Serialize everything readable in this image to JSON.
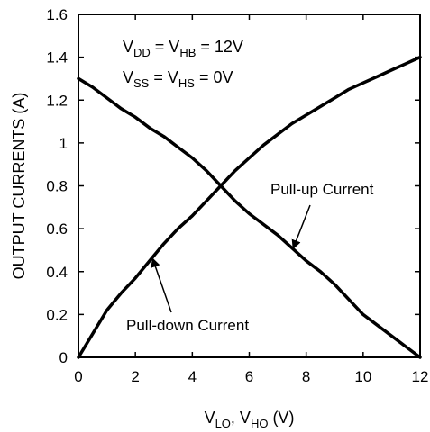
{
  "chart_data": {
    "type": "line",
    "xlabel": {
      "base1": "V",
      "sub1": "LO",
      "sep": ", ",
      "base2": "V",
      "sub2": "HO",
      "unit": " (V)"
    },
    "ylabel": "OUTPUT CURRENTS (A)",
    "xlim": [
      0,
      12
    ],
    "ylim": [
      0,
      1.6
    ],
    "xticks": [
      "0",
      "2",
      "4",
      "6",
      "8",
      "10",
      "12"
    ],
    "yticks": [
      "0",
      "0.2",
      "0.4",
      "0.6",
      "0.8",
      "1",
      "1.2",
      "1.4",
      "1.6"
    ],
    "grid": false,
    "conditions": [
      {
        "parts": [
          {
            "t": "V"
          },
          {
            "t": "DD",
            "sub": true
          },
          {
            "t": " = V"
          },
          {
            "t": "HB",
            "sub": true
          },
          {
            "t": " = 12V"
          }
        ]
      },
      {
        "parts": [
          {
            "t": "V"
          },
          {
            "t": "SS",
            "sub": true
          },
          {
            "t": " = V"
          },
          {
            "t": "HS",
            "sub": true
          },
          {
            "t": " = 0V"
          }
        ]
      }
    ],
    "series": [
      {
        "name": "Pull-down Current",
        "x": [
          0,
          0.5,
          1,
          1.5,
          2,
          2.5,
          3,
          3.5,
          4,
          4.5,
          5,
          5.5,
          6,
          6.5,
          7,
          7.5,
          8,
          8.5,
          9,
          9.5,
          10,
          10.5,
          11,
          11.5,
          12
        ],
        "y": [
          0,
          0.11,
          0.22,
          0.3,
          0.37,
          0.45,
          0.53,
          0.6,
          0.66,
          0.73,
          0.8,
          0.87,
          0.93,
          0.99,
          1.04,
          1.09,
          1.13,
          1.17,
          1.21,
          1.25,
          1.28,
          1.31,
          1.34,
          1.37,
          1.4
        ]
      },
      {
        "name": "Pull-up Current",
        "x": [
          0,
          0.5,
          1,
          1.5,
          2,
          2.5,
          3,
          3.5,
          4,
          4.5,
          5,
          5.5,
          6,
          6.5,
          7,
          7.5,
          8,
          8.5,
          9,
          9.5,
          10,
          10.5,
          11,
          11.5,
          12
        ],
        "y": [
          1.3,
          1.26,
          1.21,
          1.16,
          1.12,
          1.07,
          1.03,
          0.98,
          0.93,
          0.87,
          0.8,
          0.73,
          0.67,
          0.62,
          0.57,
          0.51,
          0.45,
          0.4,
          0.34,
          0.27,
          0.2,
          0.15,
          0.1,
          0.05,
          0
        ]
      }
    ],
    "annotations": [
      {
        "text": "Pull-up Current",
        "series": 1,
        "arrow_to_x": 7.35
      },
      {
        "text": "Pull-down Current",
        "series": 0,
        "arrow_to_x": 2.7
      }
    ]
  }
}
